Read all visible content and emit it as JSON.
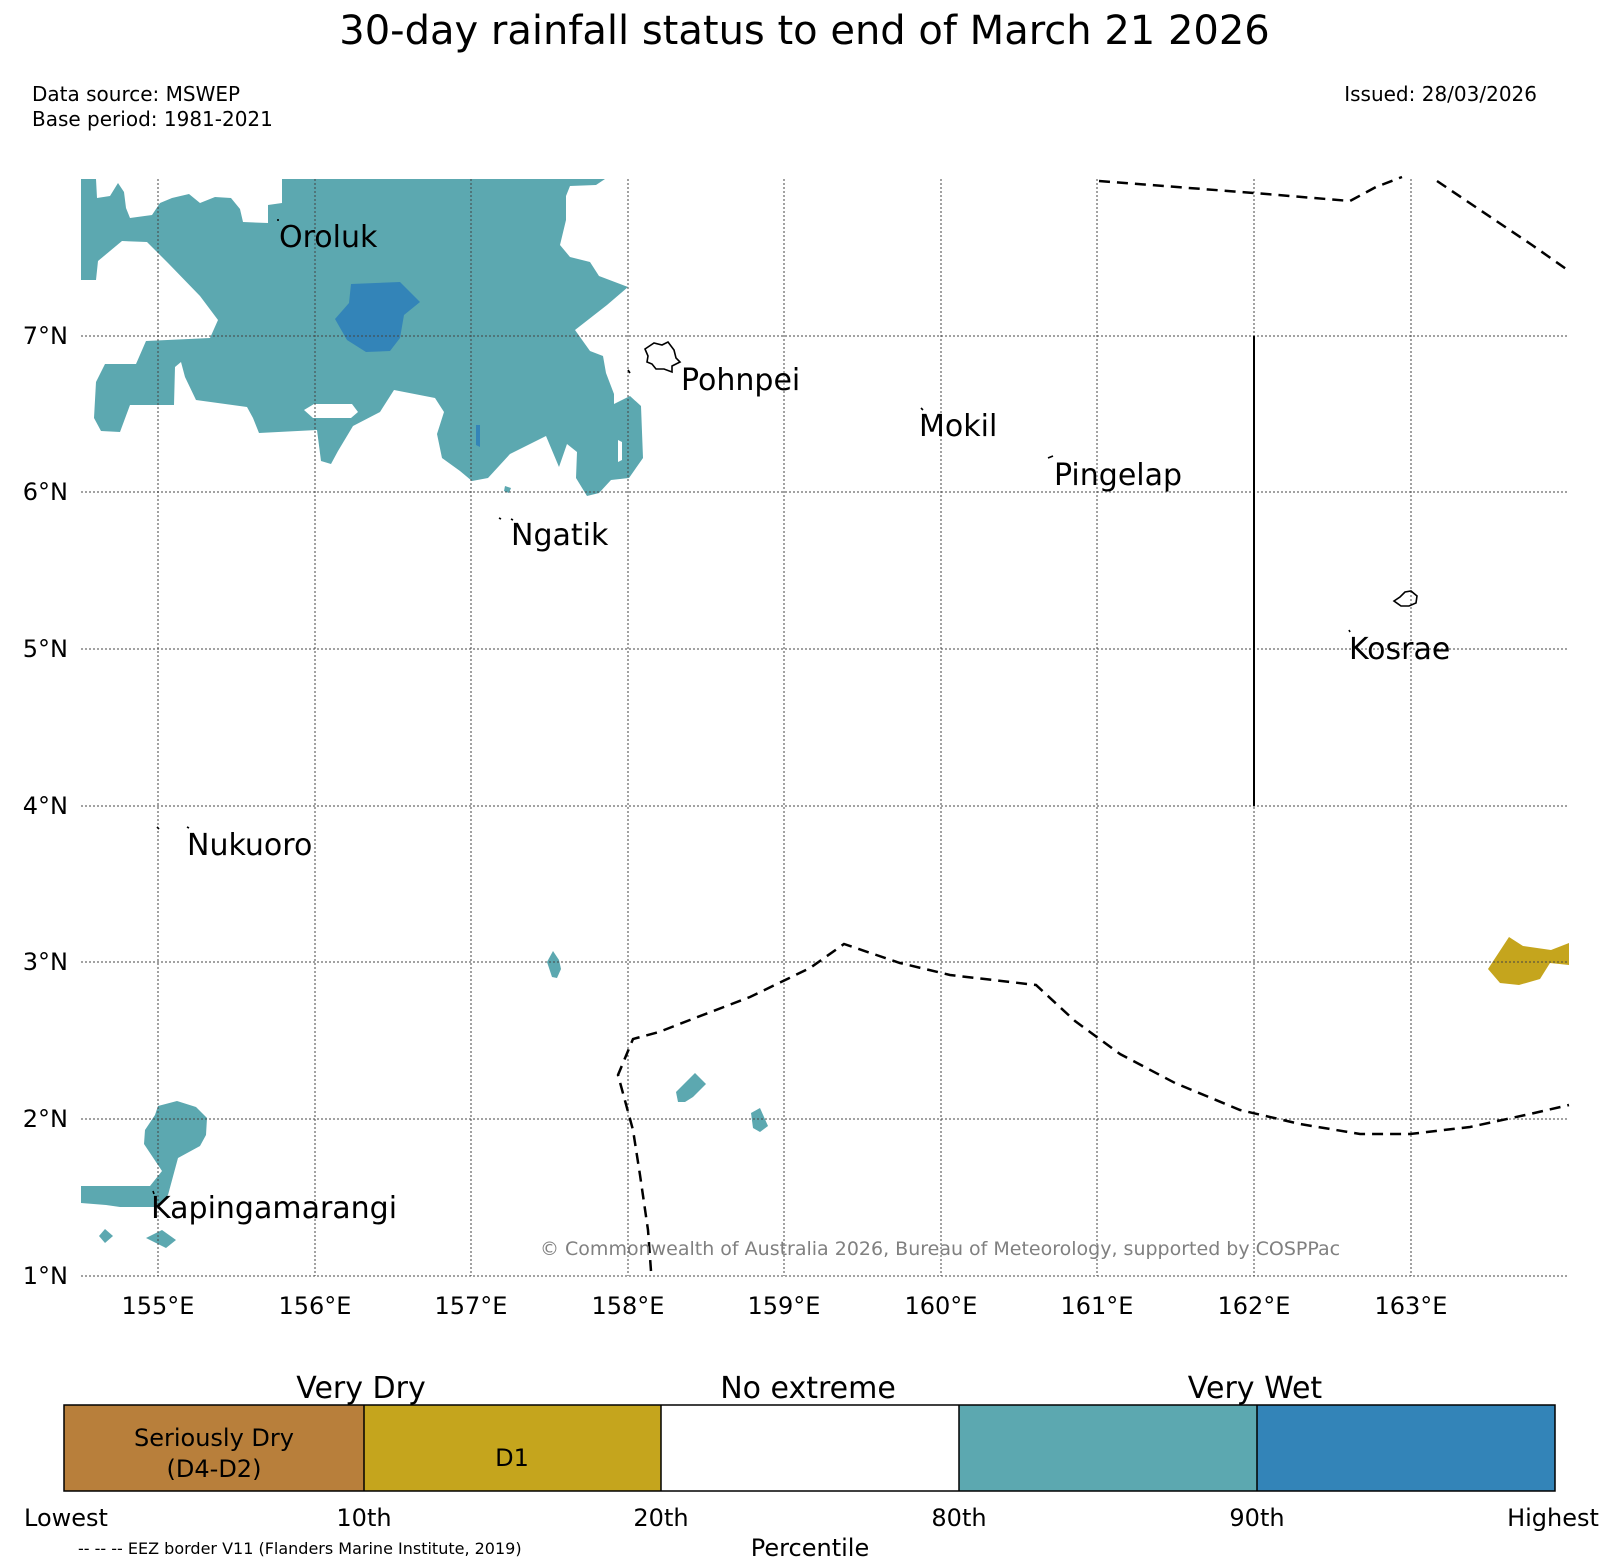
{
  "title": "30-day rainfall status to end of March 21 2026",
  "data_source": "Data source: MSWEP",
  "base_period": "Base period: 1981-2021",
  "issued": "Issued: 28/03/2026",
  "copyright": "© Commonwealth of Australia 2026, Bureau of Meteorology, supported by COSPPac",
  "map": {
    "lat_ticks": [
      "1°N",
      "2°N",
      "3°N",
      "4°N",
      "5°N",
      "6°N",
      "7°N"
    ],
    "lon_ticks": [
      "155°E",
      "156°E",
      "157°E",
      "158°E",
      "159°E",
      "160°E",
      "161°E",
      "162°E",
      "163°E"
    ],
    "places": {
      "oroluk": "Oroluk",
      "pohnpei": "Pohnpei",
      "mokil": "Mokil",
      "pingelap": "Pingelap",
      "ngatik": "Ngatik",
      "kosrae": "Kosrae",
      "nukuoro": "Nukuoro",
      "kapingamarangi": "Kapingamarangi"
    }
  },
  "legend": {
    "groups": {
      "very_dry": "Very Dry",
      "no_extreme": "No extreme",
      "very_wet": "Very Wet"
    },
    "boxes": {
      "seriously_dry_1": "Seriously Dry",
      "seriously_dry_2": "(D4-D2)",
      "d1": "D1"
    },
    "ticks": {
      "lowest": "Lowest",
      "p10": "10th",
      "p20": "20th",
      "p80": "80th",
      "p90": "90th",
      "highest": "Highest"
    },
    "axis_label": "Percentile",
    "eez_note": "-- -- -- EEZ border V11 (Flanders Marine Institute, 2019)",
    "colors": {
      "seriously_dry": "#b87f3b",
      "d1": "#c5a51d",
      "no_extreme": "#ffffff",
      "wet_80_90": "#5ca8b0",
      "very_wet": "#3384b8"
    }
  }
}
